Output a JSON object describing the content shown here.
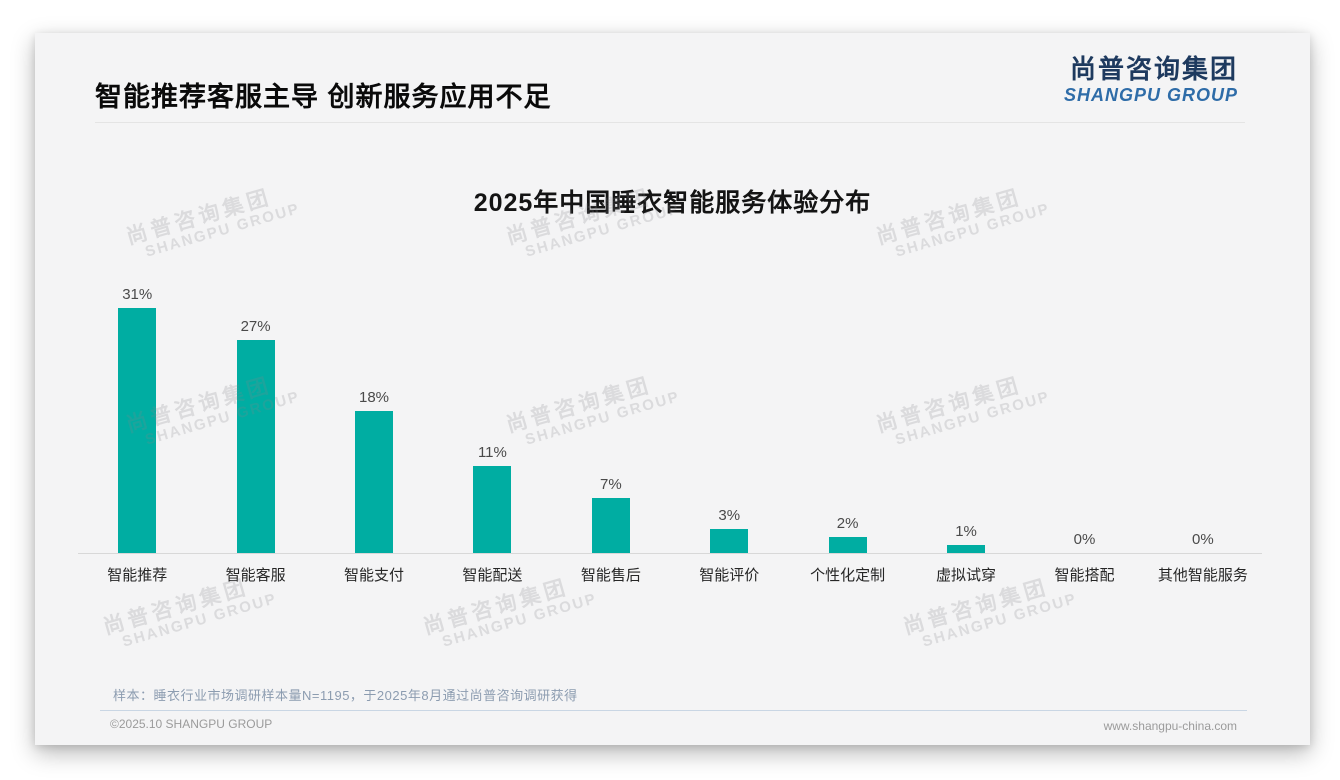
{
  "page": {
    "title": "智能推荐客服主导 创新服务应用不足",
    "note": "样本：睡衣行业市场调研样本量N=1195，于2025年8月通过尚普咨询调研获得",
    "footer_left": "©2025.10 SHANGPU GROUP",
    "footer_right": "www.shangpu-china.com"
  },
  "logo": {
    "cn": "尚普咨询集团",
    "en": "SHANGPU GROUP"
  },
  "watermark": {
    "cn": "尚普咨询集团",
    "en": "SHANGPU GROUP"
  },
  "chart_data": {
    "type": "bar",
    "title": "2025年中国睡衣智能服务体验分布",
    "categories": [
      "智能推荐",
      "智能客服",
      "智能支付",
      "智能配送",
      "智能售后",
      "智能评价",
      "个性化定制",
      "虚拟试穿",
      "智能搭配",
      "其他智能服务"
    ],
    "values": [
      31,
      27,
      18,
      11,
      7,
      3,
      2,
      1,
      0,
      0
    ],
    "value_labels": [
      "31%",
      "27%",
      "18%",
      "11%",
      "7%",
      "3%",
      "2%",
      "1%",
      "0%",
      "0%"
    ],
    "unit": "%",
    "ylim": [
      0,
      34
    ],
    "grid": false,
    "legend": false,
    "xlabel": "",
    "ylabel": "",
    "bar_color": "#00ada2"
  },
  "colors": {
    "bar": "#00ada2",
    "card_background": "#f4f4f5",
    "logo_cn": "#1e3a5f",
    "logo_en": "#2e6ca8",
    "note_text": "#8c9cb0",
    "footer_divider": "#c9d6e4"
  }
}
